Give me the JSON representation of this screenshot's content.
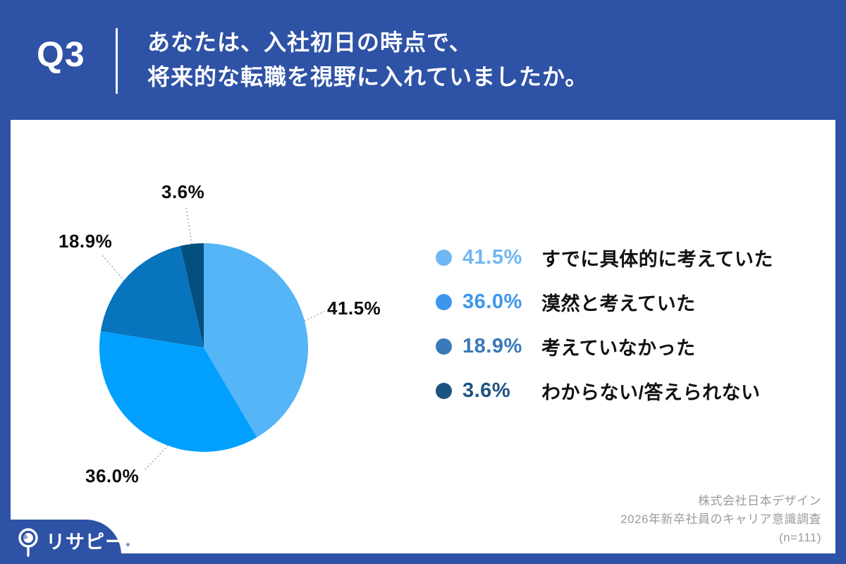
{
  "header": {
    "question_number": "Q3",
    "question_line1": "あなたは、入社初日の時点で、",
    "question_line2": "将来的な転職を視野に入れていましたか。"
  },
  "chart_data": {
    "type": "pie",
    "title": "入社初日の時点で将来的な転職を視野に入れていたか",
    "labels": [
      "すでに具体的に考えていた",
      "漠然と考えていた",
      "考えていなかった",
      "わからない/答えられない"
    ],
    "values": [
      41.5,
      36.0,
      18.9,
      3.6
    ],
    "values_pct": [
      "41.5%",
      "36.0%",
      "18.9%",
      "3.6%"
    ],
    "colors": [
      "#55B5F7",
      "#01A0FF",
      "#0774BD",
      "#03507E"
    ],
    "legend_colors": [
      "#6FB7F3",
      "#3D96EE",
      "#3879B8",
      "#1D5382"
    ],
    "start_angle": "top",
    "direction": "clockwise",
    "legend_position": "right",
    "sample_size": 111
  },
  "footer": {
    "source_line1": "株式会社日本デザイン",
    "source_line2": "2026年新卒社員のキャリア意識調査",
    "source_line3": "(n=111)"
  },
  "logo": {
    "text": "リサピー"
  },
  "colors": {
    "brand_blue": "#2E52A5",
    "leader_line": "#999999",
    "source_text": "#9b9b9b"
  }
}
